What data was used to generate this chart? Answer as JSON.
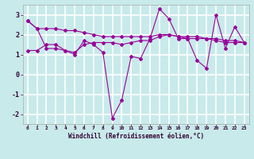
{
  "xlabel": "Windchill (Refroidissement éolien,°C)",
  "background_color": "#c8eaea",
  "grid_color": "#ffffff",
  "line_color": "#990099",
  "x_hours": [
    0,
    1,
    2,
    3,
    4,
    5,
    6,
    7,
    8,
    9,
    10,
    11,
    12,
    13,
    14,
    15,
    16,
    17,
    18,
    19,
    20,
    21,
    22,
    23
  ],
  "series1": [
    2.7,
    2.3,
    1.3,
    1.3,
    1.2,
    1.0,
    1.7,
    1.5,
    1.1,
    -2.2,
    -1.3,
    0.9,
    0.8,
    1.8,
    3.3,
    2.8,
    1.8,
    1.8,
    0.7,
    0.3,
    3.0,
    1.3,
    2.4,
    1.6
  ],
  "series2": [
    2.7,
    2.3,
    2.3,
    2.3,
    2.2,
    2.2,
    2.1,
    2.0,
    1.9,
    1.9,
    1.9,
    1.9,
    1.9,
    1.9,
    2.0,
    2.0,
    1.9,
    1.9,
    1.9,
    1.8,
    1.8,
    1.7,
    1.7,
    1.6
  ],
  "series3": [
    1.2,
    1.2,
    1.5,
    1.5,
    1.2,
    1.1,
    1.5,
    1.6,
    1.6,
    1.6,
    1.5,
    1.6,
    1.7,
    1.7,
    1.9,
    2.0,
    1.9,
    1.8,
    1.8,
    1.8,
    1.7,
    1.6,
    1.6,
    1.6
  ],
  "ylim": [
    -2.5,
    3.5
  ],
  "yticks": [
    -2,
    -1,
    0,
    1,
    2,
    3
  ],
  "xticks": [
    0,
    1,
    2,
    3,
    4,
    5,
    6,
    7,
    8,
    9,
    10,
    11,
    12,
    13,
    14,
    15,
    16,
    17,
    18,
    19,
    20,
    21,
    22,
    23
  ]
}
